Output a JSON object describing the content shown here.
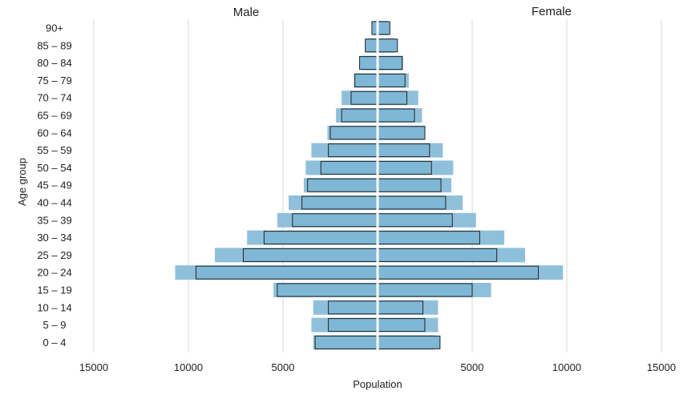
{
  "chart_data": {
    "type": "bar",
    "orientation": "horizontal",
    "variant": "population-pyramid",
    "title": "",
    "xlabel": "Population",
    "ylabel": "Age group",
    "panel_labels": {
      "left": "Male",
      "right": "Female"
    },
    "xlim": [
      -15000,
      15000
    ],
    "x_ticks": [
      -15000,
      -10000,
      -5000,
      0,
      5000,
      10000,
      15000
    ],
    "x_tick_labels": [
      "15000",
      "10000",
      "5000",
      "",
      "5000",
      "10000",
      "15000"
    ],
    "grid": "vertical",
    "categories": [
      "90+",
      "85 – 89",
      "80 – 84",
      "75 – 79",
      "70 – 74",
      "65 – 69",
      "60 – 64",
      "55 – 59",
      "50 – 54",
      "45 – 49",
      "40 – 44",
      "35 – 39",
      "30 – 34",
      "25 – 29",
      "20 – 24",
      "15 – 19",
      "10 – 14",
      "5 – 9",
      "0 – 4"
    ],
    "series": [
      {
        "style": "filled",
        "color": "#8fc0db",
        "male": [
          200,
          550,
          850,
          1250,
          1900,
          2200,
          2650,
          3500,
          3800,
          3900,
          4700,
          5300,
          6900,
          8600,
          10700,
          5500,
          3400,
          3500,
          3400
        ],
        "female": [
          550,
          900,
          1350,
          1650,
          2150,
          2350,
          2500,
          3450,
          4000,
          3900,
          4500,
          5200,
          6700,
          7800,
          9800,
          6000,
          3200,
          3200,
          3000
        ]
      },
      {
        "style": "outlined",
        "color": "#7fb7d6",
        "outline": "#222222",
        "male": [
          300,
          650,
          950,
          1200,
          1400,
          1900,
          2500,
          2600,
          3000,
          3700,
          4000,
          4500,
          6000,
          7100,
          9600,
          5300,
          2600,
          2600,
          3300
        ],
        "female": [
          650,
          1050,
          1300,
          1450,
          1550,
          1950,
          2500,
          2750,
          2850,
          3350,
          3600,
          3950,
          5400,
          6300,
          8500,
          5000,
          2400,
          2500,
          3300
        ]
      }
    ]
  }
}
